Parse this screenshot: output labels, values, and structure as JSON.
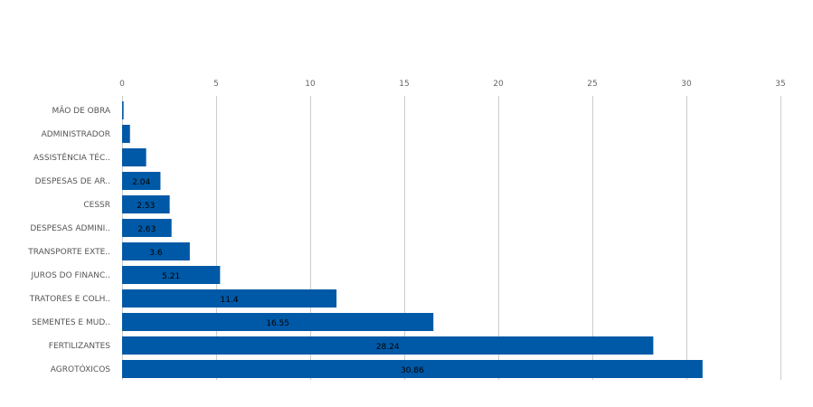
{
  "chart_data": {
    "type": "bar",
    "orientation": "horizontal",
    "categories": [
      "MÃO DE OBRA",
      "ADMINISTRADOR",
      "ASSISTÊNCIA TÉC..",
      "DESPESAS DE AR..",
      "CESSR",
      "DESPESAS ADMINI..",
      "TRANSPORTE EXTE..",
      "JUROS DO FINANC..",
      "TRATORES E COLH..",
      "SEMENTES E MUD..",
      "FERTILIZANTES",
      "AGROTÓXICOS"
    ],
    "values": [
      0.08,
      0.42,
      1.28,
      2.04,
      2.53,
      2.63,
      3.6,
      5.21,
      11.4,
      16.55,
      28.24,
      30.86
    ],
    "data_labels": [
      "",
      "",
      "",
      "2.04",
      "2.53",
      "2.63",
      "3.6",
      "5.21",
      "11.4",
      "16.55",
      "28.24",
      "30.86"
    ],
    "xlim": [
      0,
      35
    ],
    "xticks": [
      0,
      5,
      10,
      15,
      20,
      25,
      30,
      35
    ],
    "x_axis_position": "top",
    "grid": true,
    "bar_color": "#0059a6",
    "grid_color": "#cccccc"
  }
}
